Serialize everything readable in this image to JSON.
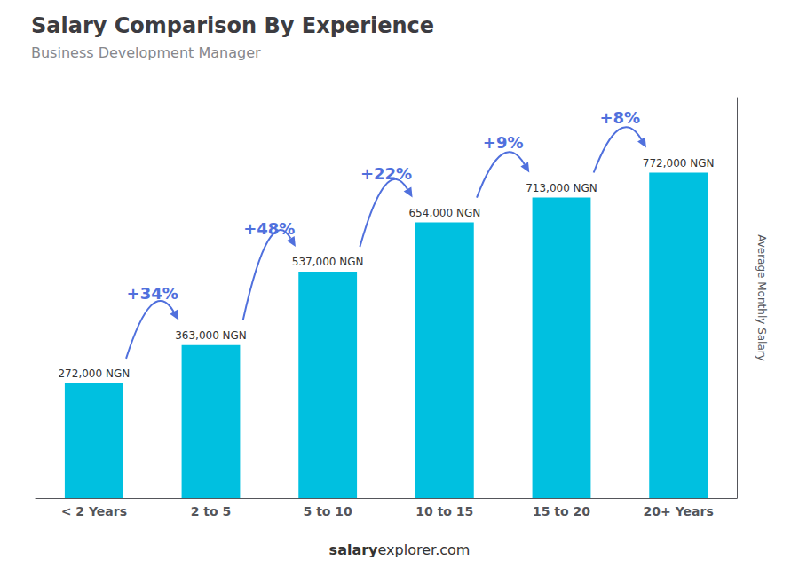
{
  "chart_data": {
    "type": "bar",
    "title": "Salary Comparison By Experience",
    "subtitle": "Business Development Manager",
    "categories": [
      "< 2 Years",
      "2 to 5",
      "5 to 10",
      "10 to 15",
      "15 to 20",
      "20+ Years"
    ],
    "values": [
      272000,
      363000,
      537000,
      654000,
      713000,
      772000
    ],
    "value_labels": [
      "272,000 NGN",
      "363,000 NGN",
      "537,000 NGN",
      "654,000 NGN",
      "713,000 NGN",
      "772,000 NGN"
    ],
    "data_labels": true,
    "annotations": [
      "+34%",
      "+48%",
      "+22%",
      "+9%",
      "+8%"
    ],
    "ylabel": "Average Monthly Salary",
    "footer": [
      "salary",
      "explorer.com"
    ],
    "color": "#00c0e0",
    "ylim": [
      0,
      950000
    ],
    "tick_labels": "x",
    "grid": false
  }
}
